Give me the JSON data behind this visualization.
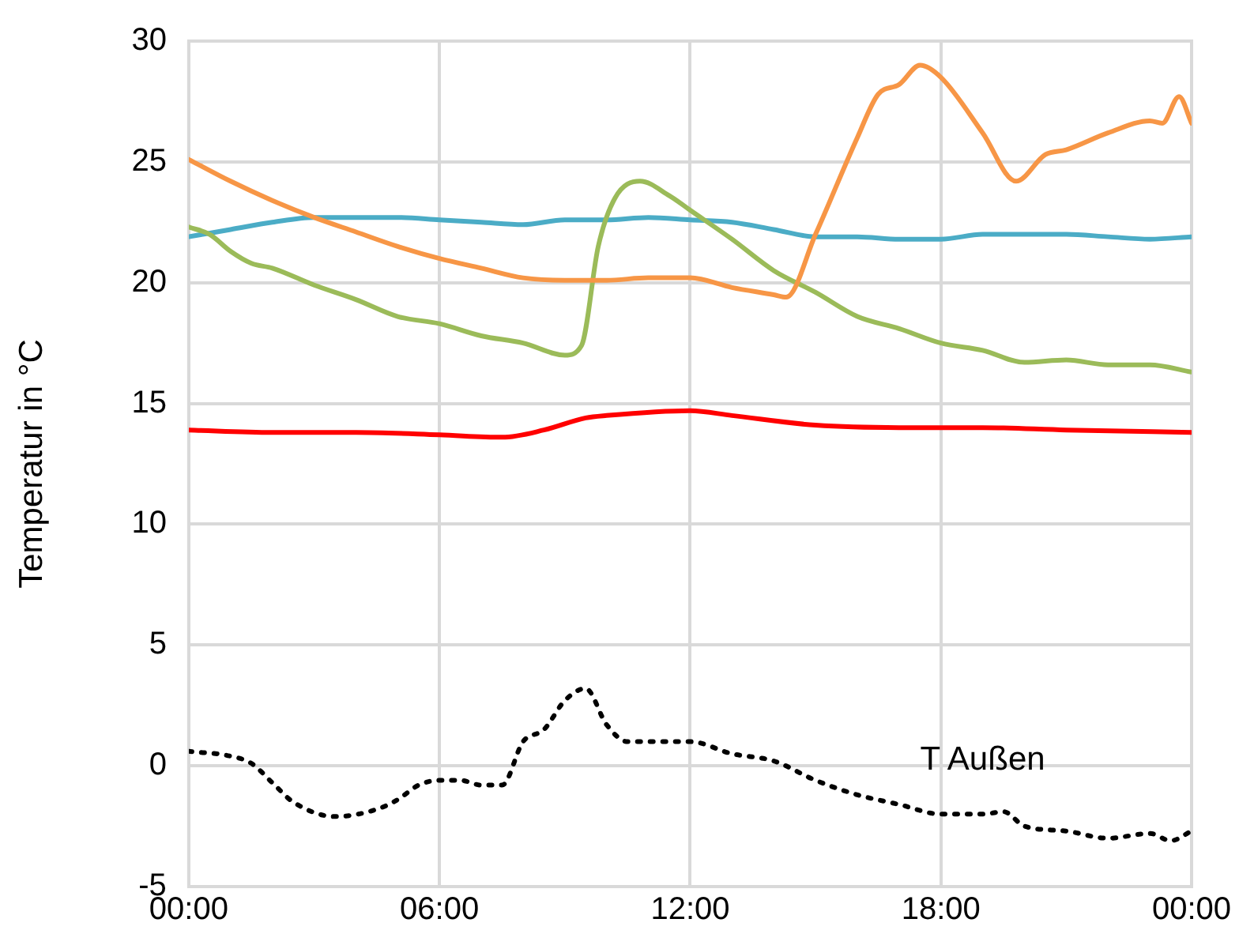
{
  "chart_data": {
    "type": "line",
    "ylabel": "Temperatur in °C",
    "xlim": [
      0,
      24
    ],
    "xticks": [
      {
        "value": 0,
        "label": "00:00"
      },
      {
        "value": 6,
        "label": "06:00"
      },
      {
        "value": 12,
        "label": "12:00"
      },
      {
        "value": 18,
        "label": "18:00"
      },
      {
        "value": 24,
        "label": "00:00"
      }
    ],
    "ylim": [
      -5,
      30
    ],
    "yticks": [
      -5,
      0,
      5,
      10,
      15,
      20,
      25,
      30
    ],
    "grid": true,
    "legend": false,
    "marker": "none",
    "series": [
      {
        "color": "#f79646",
        "x": [
          0,
          1,
          2,
          3,
          4,
          5,
          6,
          7,
          8,
          9,
          10,
          11,
          12,
          13,
          14,
          14.3,
          15,
          16,
          16.5,
          17,
          17.5,
          18,
          19,
          19.8,
          20.5,
          21,
          22,
          23,
          23.3,
          23.7,
          24
        ],
        "values": [
          25.1,
          24.2,
          23.4,
          22.7,
          22.1,
          21.5,
          21.0,
          20.6,
          20.2,
          20.1,
          20.1,
          20.2,
          20.2,
          19.8,
          19.5,
          19.4,
          22.0,
          26.0,
          27.8,
          28.2,
          29.0,
          28.5,
          26.2,
          24.2,
          25.3,
          25.5,
          26.2,
          26.7,
          26.6,
          27.7,
          26.6
        ]
      },
      {
        "color": "#9bbb59",
        "x": [
          0,
          0.5,
          1,
          1.5,
          2,
          3,
          4,
          5,
          6,
          7,
          8,
          9,
          9.4,
          9.8,
          10.2,
          10.8,
          11.5,
          12,
          13,
          14,
          15,
          16,
          17,
          18,
          19,
          20,
          21,
          22,
          23,
          24
        ],
        "values": [
          22.3,
          22.0,
          21.3,
          20.8,
          20.6,
          19.9,
          19.3,
          18.6,
          18.3,
          17.8,
          17.5,
          17.0,
          17.4,
          21.5,
          23.5,
          24.2,
          23.6,
          23.0,
          21.8,
          20.5,
          19.6,
          18.6,
          18.1,
          17.5,
          17.2,
          16.7,
          16.8,
          16.6,
          16.6,
          16.3
        ]
      },
      {
        "color": "#4bacc6",
        "x": [
          0,
          1,
          2,
          3,
          4,
          5,
          6,
          7,
          8,
          9,
          10,
          11,
          12,
          13,
          14,
          15,
          16,
          17,
          18,
          19,
          20,
          21,
          22,
          23,
          24
        ],
        "values": [
          21.9,
          22.2,
          22.5,
          22.7,
          22.7,
          22.7,
          22.6,
          22.5,
          22.4,
          22.6,
          22.6,
          22.7,
          22.6,
          22.5,
          22.2,
          21.9,
          21.9,
          21.8,
          21.8,
          22.0,
          22.0,
          22.0,
          21.9,
          21.8,
          21.9
        ]
      },
      {
        "color": "#ff0000",
        "x": [
          0,
          2,
          4,
          6,
          7.5,
          8.5,
          9.5,
          10,
          12,
          13,
          15,
          17,
          19,
          21,
          24
        ],
        "values": [
          13.9,
          13.8,
          13.8,
          13.7,
          13.6,
          13.9,
          14.4,
          14.5,
          14.7,
          14.5,
          14.1,
          14.0,
          14.0,
          13.9,
          13.8
        ]
      },
      {
        "name": "T Außen",
        "color": "#000000",
        "line_style": "dotted",
        "x": [
          0,
          1,
          1.5,
          2,
          2.5,
          3.5,
          4.5,
          5,
          5.5,
          6,
          6.5,
          7,
          7.5,
          8,
          8.5,
          9,
          9.5,
          10,
          10.5,
          11,
          12,
          13,
          14,
          15,
          16,
          17,
          18,
          19,
          19.5,
          20,
          21,
          22,
          23,
          23.5,
          24
        ],
        "values": [
          0.6,
          0.4,
          0.1,
          -0.7,
          -1.5,
          -2.1,
          -1.8,
          -1.4,
          -0.8,
          -0.6,
          -0.6,
          -0.8,
          -0.8,
          1.0,
          1.5,
          2.7,
          3.2,
          1.7,
          1.0,
          1.0,
          1.0,
          0.5,
          0.2,
          -0.6,
          -1.2,
          -1.6,
          -2.0,
          -2.0,
          -1.9,
          -2.5,
          -2.7,
          -3.0,
          -2.8,
          -3.1,
          -2.7
        ]
      }
    ]
  }
}
